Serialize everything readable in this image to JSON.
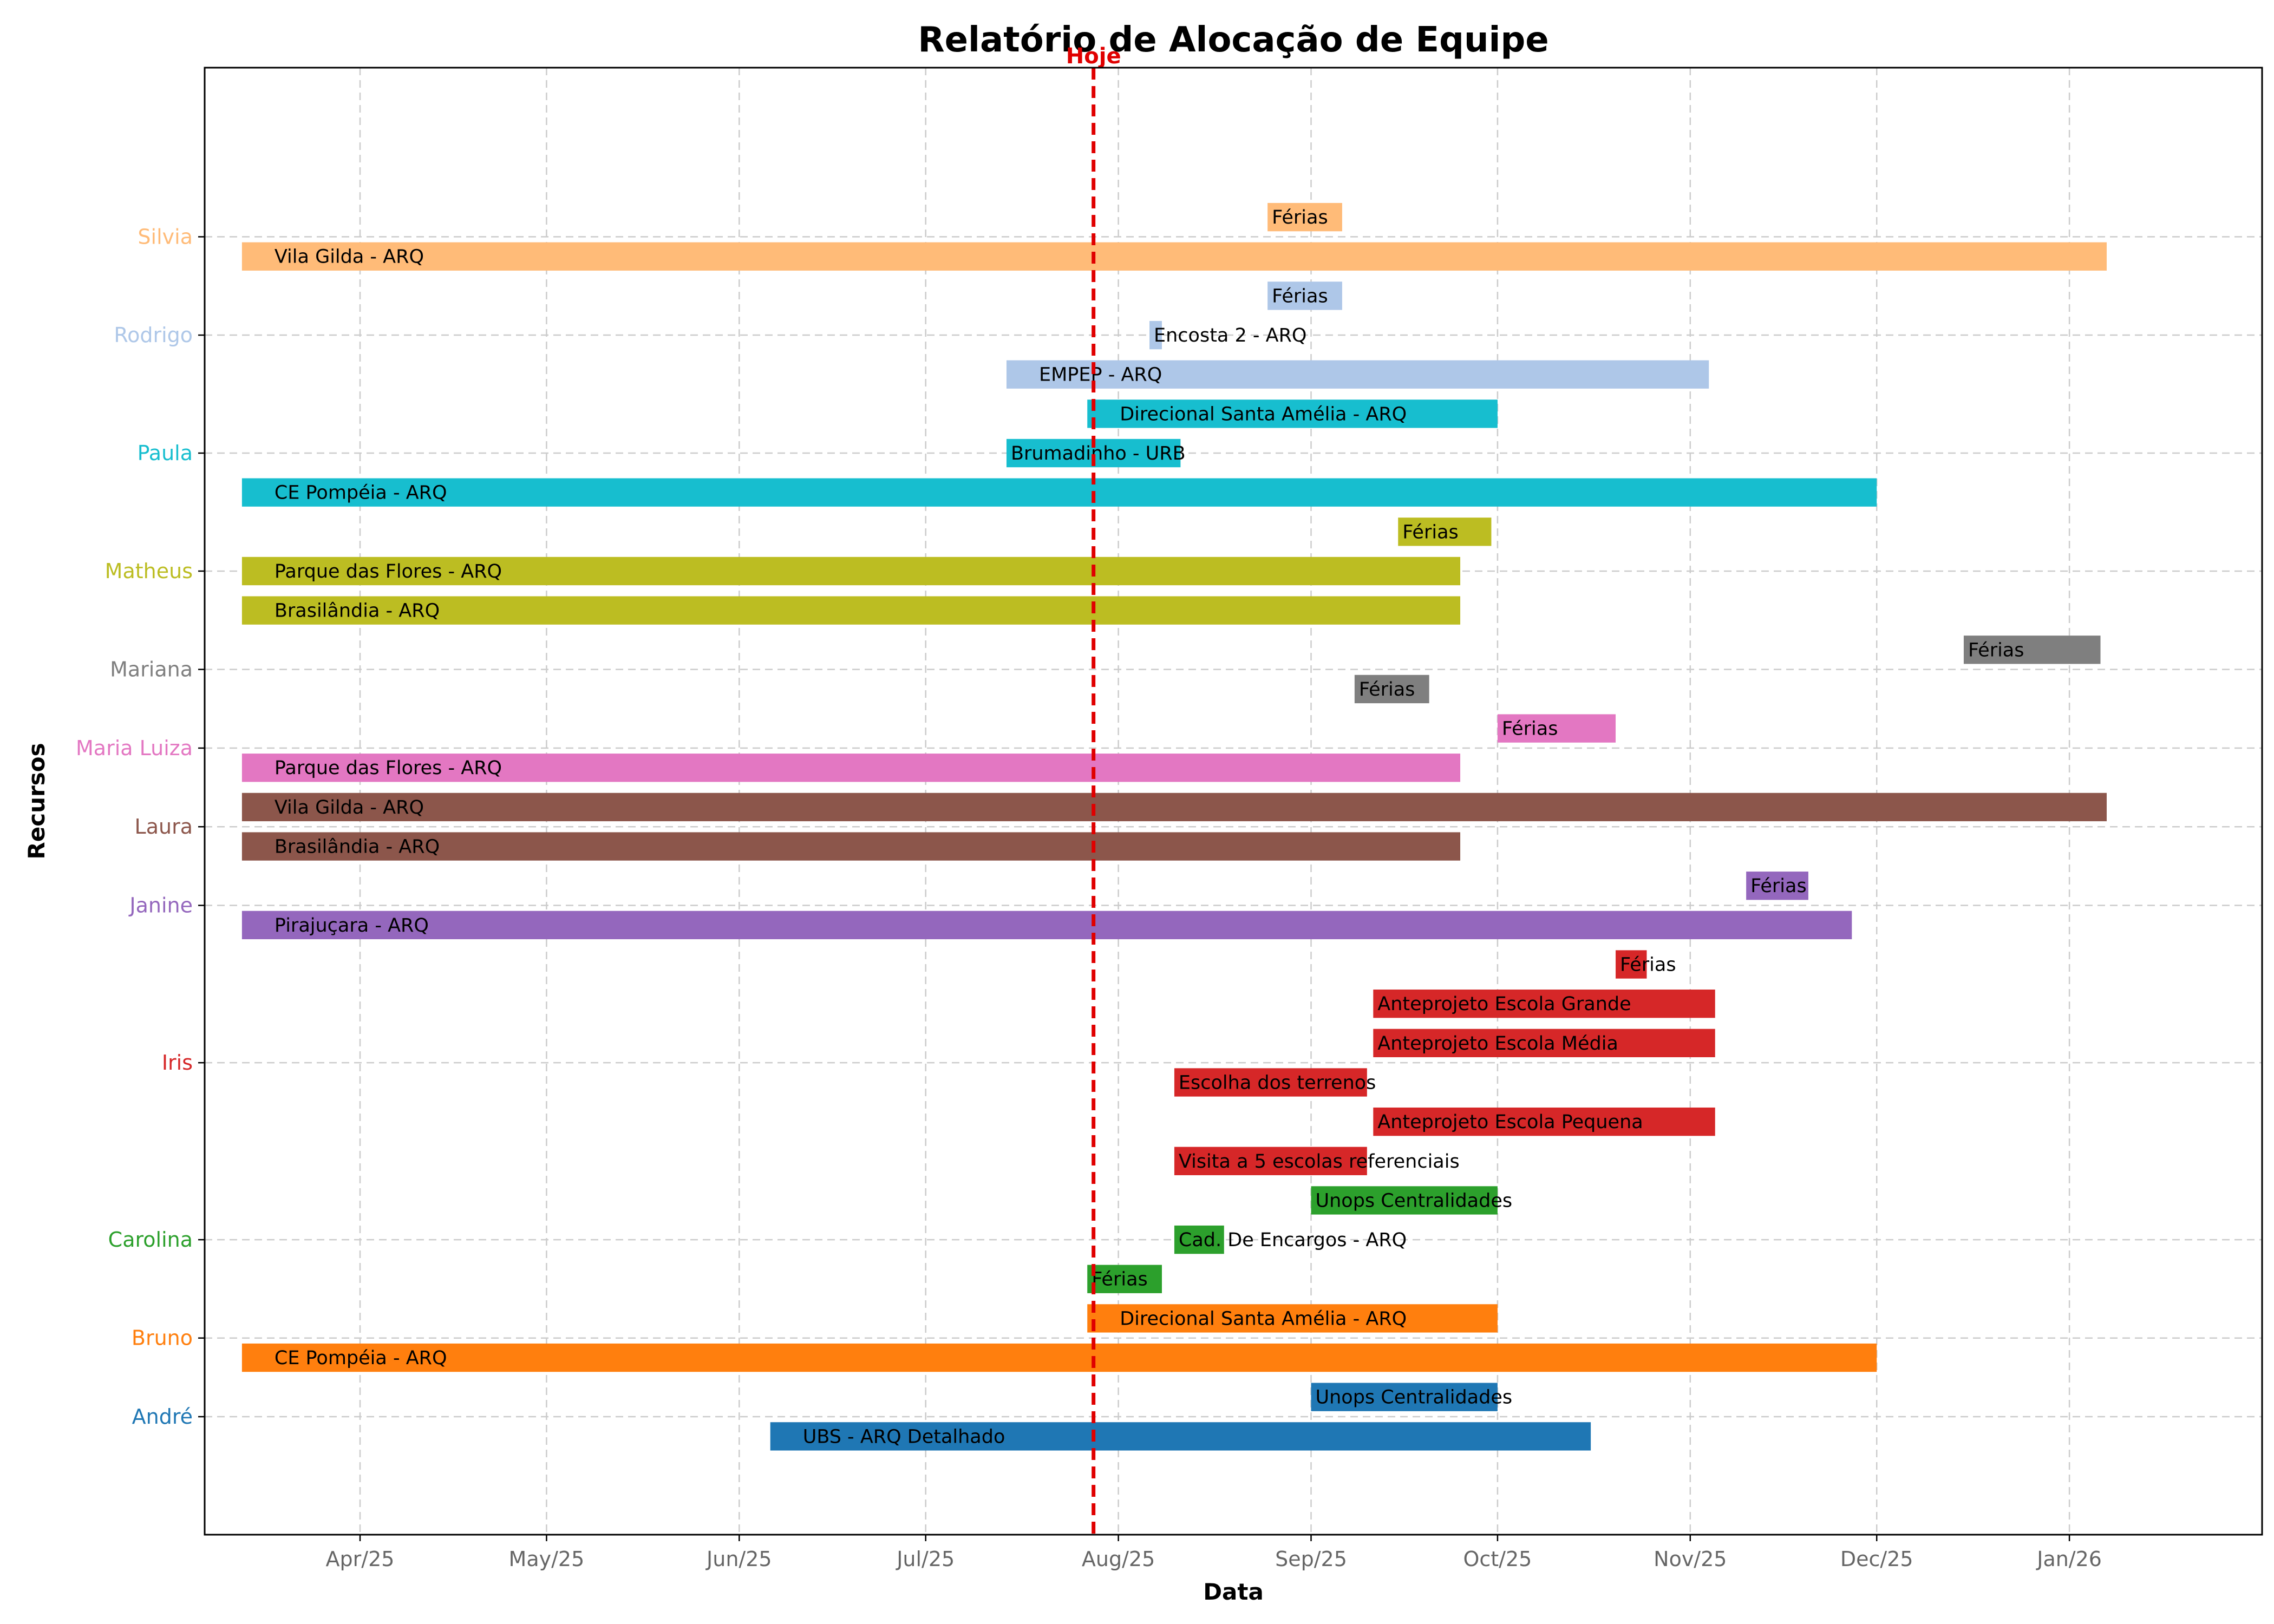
{
  "chart_data": {
    "type": "gantt",
    "title": "Relatório de Alocação de Equipe",
    "xlabel": "Data",
    "ylabel": "Recursos",
    "today_label": "Hoje",
    "today": "2025-07-28",
    "xlim": [
      "2025-03-07",
      "2026-02-01"
    ],
    "ylim": [
      -2.5,
      34.8
    ],
    "x_ticks": [
      {
        "date": "2025-04-01",
        "label": "Apr/25"
      },
      {
        "date": "2025-05-01",
        "label": "May/25"
      },
      {
        "date": "2025-06-01",
        "label": "Jun/25"
      },
      {
        "date": "2025-07-01",
        "label": "Jul/25"
      },
      {
        "date": "2025-08-01",
        "label": "Aug/25"
      },
      {
        "date": "2025-09-01",
        "label": "Sep/25"
      },
      {
        "date": "2025-10-01",
        "label": "Oct/25"
      },
      {
        "date": "2025-11-01",
        "label": "Nov/25"
      },
      {
        "date": "2025-12-01",
        "label": "Dec/25"
      },
      {
        "date": "2026-01-01",
        "label": "Jan/26"
      }
    ],
    "resources": [
      {
        "name": "André",
        "y": 0.5,
        "color": "#1f77b4"
      },
      {
        "name": "Bruno",
        "y": 2.5,
        "color": "#ff7f0e"
      },
      {
        "name": "Carolina",
        "y": 5.0,
        "color": "#2ca02c"
      },
      {
        "name": "Iris",
        "y": 9.5,
        "color": "#d62728"
      },
      {
        "name": "Janine",
        "y": 13.5,
        "color": "#9467bd"
      },
      {
        "name": "Laura",
        "y": 15.5,
        "color": "#8c564b"
      },
      {
        "name": "Maria Luiza",
        "y": 17.5,
        "color": "#e377c2"
      },
      {
        "name": "Mariana",
        "y": 19.5,
        "color": "#7f7f7f"
      },
      {
        "name": "Matheus",
        "y": 22.0,
        "color": "#bcbd22"
      },
      {
        "name": "Paula",
        "y": 25.0,
        "color": "#17becf"
      },
      {
        "name": "Rodrigo",
        "y": 28.0,
        "color": "#aec7e8"
      },
      {
        "name": "Silvia",
        "y": 30.5,
        "color": "#ffbb78"
      }
    ],
    "tasks": [
      {
        "resource": "André",
        "label": "UBS - ARQ Detalhado",
        "start": "2025-06-06",
        "end": "2025-10-16",
        "y": 0
      },
      {
        "resource": "André",
        "label": "Unops Centralidades",
        "start": "2025-09-01",
        "end": "2025-10-01",
        "y": 1
      },
      {
        "resource": "Bruno",
        "label": "CE Pompéia - ARQ",
        "start": "2025-03-13",
        "end": "2025-12-01",
        "y": 2
      },
      {
        "resource": "Bruno",
        "label": "Direcional Santa Amélia - ARQ",
        "start": "2025-07-27",
        "end": "2025-10-01",
        "y": 3
      },
      {
        "resource": "Carolina",
        "label": "Férias",
        "start": "2025-07-27",
        "end": "2025-08-08",
        "y": 4
      },
      {
        "resource": "Carolina",
        "label": "Cad. De Encargos - ARQ",
        "start": "2025-08-10",
        "end": "2025-08-18",
        "y": 5
      },
      {
        "resource": "Carolina",
        "label": "Unops Centralidades",
        "start": "2025-09-01",
        "end": "2025-10-01",
        "y": 6
      },
      {
        "resource": "Iris",
        "label": "Visita a 5 escolas referenciais",
        "start": "2025-08-10",
        "end": "2025-09-10",
        "y": 7
      },
      {
        "resource": "Iris",
        "label": "Anteprojeto Escola Pequena",
        "start": "2025-09-11",
        "end": "2025-11-05",
        "y": 8
      },
      {
        "resource": "Iris",
        "label": "Escolha dos terrenos",
        "start": "2025-08-10",
        "end": "2025-09-10",
        "y": 9
      },
      {
        "resource": "Iris",
        "label": "Anteprojeto Escola Média",
        "start": "2025-09-11",
        "end": "2025-11-05",
        "y": 10
      },
      {
        "resource": "Iris",
        "label": "Anteprojeto Escola Grande",
        "start": "2025-09-11",
        "end": "2025-11-05",
        "y": 11
      },
      {
        "resource": "Iris",
        "label": "Férias",
        "start": "2025-10-20",
        "end": "2025-10-25",
        "y": 12
      },
      {
        "resource": "Janine",
        "label": "Pirajuçara - ARQ",
        "start": "2025-03-13",
        "end": "2025-11-27",
        "y": 13
      },
      {
        "resource": "Janine",
        "label": "Férias",
        "start": "2025-11-10",
        "end": "2025-11-20",
        "y": 14
      },
      {
        "resource": "Laura",
        "label": "Brasilândia - ARQ",
        "start": "2025-03-13",
        "end": "2025-09-25",
        "y": 15
      },
      {
        "resource": "Laura",
        "label": "Vila Gilda - ARQ",
        "start": "2025-03-13",
        "end": "2026-01-07",
        "y": 16
      },
      {
        "resource": "Maria Luiza",
        "label": "Parque das Flores - ARQ",
        "start": "2025-03-13",
        "end": "2025-09-25",
        "y": 17
      },
      {
        "resource": "Maria Luiza",
        "label": "Férias",
        "start": "2025-10-01",
        "end": "2025-10-20",
        "y": 18
      },
      {
        "resource": "Mariana",
        "label": "Férias",
        "start": "2025-09-08",
        "end": "2025-09-20",
        "y": 19
      },
      {
        "resource": "Mariana",
        "label": "Férias",
        "start": "2025-12-15",
        "end": "2026-01-06",
        "y": 20
      },
      {
        "resource": "Matheus",
        "label": "Brasilândia - ARQ",
        "start": "2025-03-13",
        "end": "2025-09-25",
        "y": 21
      },
      {
        "resource": "Matheus",
        "label": "Parque das Flores - ARQ",
        "start": "2025-03-13",
        "end": "2025-09-25",
        "y": 22
      },
      {
        "resource": "Matheus",
        "label": "Férias",
        "start": "2025-09-15",
        "end": "2025-09-30",
        "y": 23
      },
      {
        "resource": "Paula",
        "label": "CE Pompéia - ARQ",
        "start": "2025-03-13",
        "end": "2025-12-01",
        "y": 24
      },
      {
        "resource": "Paula",
        "label": "Brumadinho - URB",
        "start": "2025-07-14",
        "end": "2025-08-11",
        "y": 25
      },
      {
        "resource": "Paula",
        "label": "Direcional Santa Amélia - ARQ",
        "start": "2025-07-27",
        "end": "2025-10-01",
        "y": 26
      },
      {
        "resource": "Rodrigo",
        "label": "EMPEP - ARQ",
        "start": "2025-07-14",
        "end": "2025-11-04",
        "y": 27
      },
      {
        "resource": "Rodrigo",
        "label": "Encosta 2 - ARQ",
        "start": "2025-08-06",
        "end": "2025-08-08",
        "y": 28
      },
      {
        "resource": "Rodrigo",
        "label": "Férias",
        "start": "2025-08-25",
        "end": "2025-09-06",
        "y": 29
      },
      {
        "resource": "Silvia",
        "label": "Vila Gilda - ARQ",
        "start": "2025-03-13",
        "end": "2026-01-07",
        "y": 30
      },
      {
        "resource": "Silvia",
        "label": "Férias",
        "start": "2025-08-25",
        "end": "2025-09-06",
        "y": 31
      }
    ]
  }
}
